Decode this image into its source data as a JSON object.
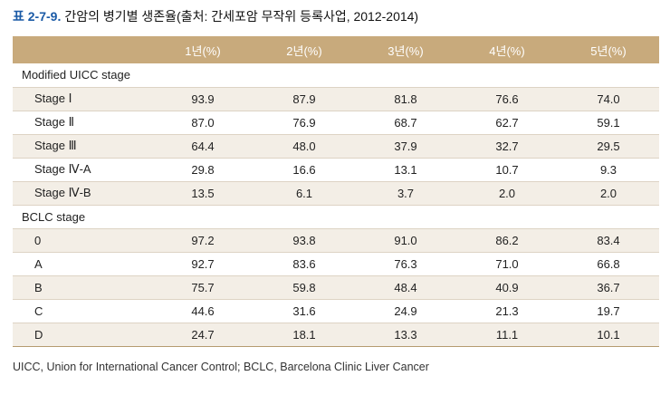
{
  "caption": {
    "number": "표 2-7-9.",
    "title": "간암의 병기별 생존율(출처: 간세포암 무작위 등록사업, 2012-2014)"
  },
  "table": {
    "header": [
      "",
      "1년(%)",
      "2년(%)",
      "3년(%)",
      "4년(%)",
      "5년(%)"
    ],
    "sections": [
      {
        "label": "Modified UICC stage",
        "rows": [
          {
            "label": "Stage Ⅰ",
            "values": [
              "93.9",
              "87.9",
              "81.8",
              "76.6",
              "74.0"
            ]
          },
          {
            "label": "Stage Ⅱ",
            "values": [
              "87.0",
              "76.9",
              "68.7",
              "62.7",
              "59.1"
            ]
          },
          {
            "label": "Stage Ⅲ",
            "values": [
              "64.4",
              "48.0",
              "37.9",
              "32.7",
              "29.5"
            ]
          },
          {
            "label": "Stage Ⅳ-A",
            "values": [
              "29.8",
              "16.6",
              "13.1",
              "10.7",
              "9.3"
            ]
          },
          {
            "label": "Stage Ⅳ-B",
            "values": [
              "13.5",
              "6.1",
              "3.7",
              "2.0",
              "2.0"
            ]
          }
        ]
      },
      {
        "label": "BCLC stage",
        "rows": [
          {
            "label": "0",
            "values": [
              "97.2",
              "93.8",
              "91.0",
              "86.2",
              "83.4"
            ]
          },
          {
            "label": "A",
            "values": [
              "92.7",
              "83.6",
              "76.3",
              "71.0",
              "66.8"
            ]
          },
          {
            "label": "B",
            "values": [
              "75.7",
              "59.8",
              "48.4",
              "40.9",
              "36.7"
            ]
          },
          {
            "label": "C",
            "values": [
              "44.6",
              "31.6",
              "24.9",
              "21.3",
              "19.7"
            ]
          },
          {
            "label": "D",
            "values": [
              "24.7",
              "18.1",
              "13.3",
              "11.1",
              "10.1"
            ]
          }
        ]
      }
    ]
  },
  "footnote": "UICC, Union for International Cancer Control; BCLC, Barcelona Clinic Liver Cancer",
  "colors": {
    "header_bg": "#c8aa7c",
    "row_shade": "#f3eee6",
    "caption_number": "#1a5aa6"
  }
}
